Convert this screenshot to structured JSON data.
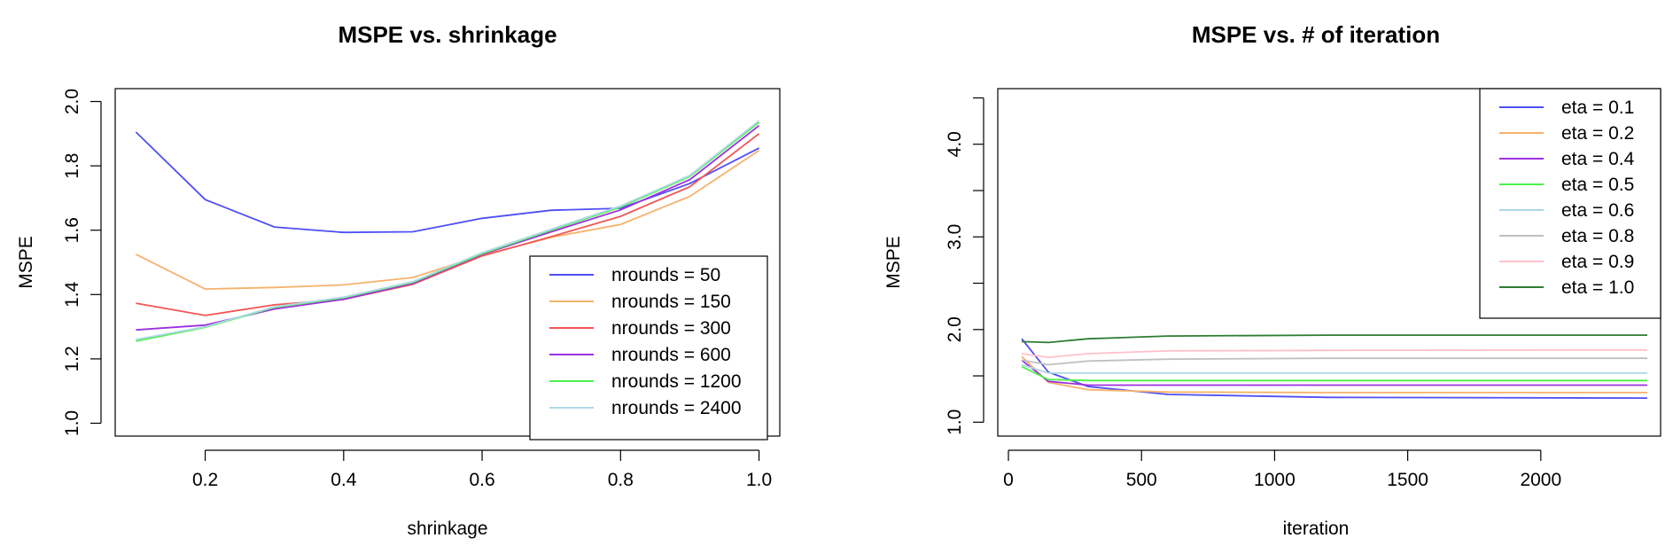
{
  "chart_data": [
    {
      "type": "line",
      "title": "MSPE vs. shrinkage",
      "xlabel": "shrinkage",
      "ylabel": "MSPE",
      "xlim": [
        0.07,
        1.03
      ],
      "ylim": [
        0.96,
        2.04
      ],
      "xticks": [
        0.2,
        0.4,
        0.6,
        0.8,
        1.0
      ],
      "xtick_labels": [
        "0.2",
        "0.4",
        "0.6",
        "0.8",
        "1.0"
      ],
      "yticks": [
        1.0,
        1.2,
        1.4,
        1.6,
        1.8,
        2.0
      ],
      "ytick_labels": [
        "1.0",
        "1.2",
        "1.4",
        "1.6",
        "1.8",
        "2.0"
      ],
      "grid": false,
      "legend_position": "bottom-right",
      "x": [
        0.1,
        0.2,
        0.3,
        0.4,
        0.5,
        0.6,
        0.7,
        0.8,
        0.9,
        1.0
      ],
      "series": [
        {
          "name": "nrounds = 50",
          "color": "#4f4ff5",
          "values": [
            1.905,
            1.695,
            1.61,
            1.593,
            1.595,
            1.637,
            1.662,
            1.668,
            1.745,
            1.855
          ]
        },
        {
          "name": "nrounds = 150",
          "color": "#f6b26b",
          "values": [
            1.525,
            1.417,
            1.422,
            1.43,
            1.453,
            1.522,
            1.578,
            1.618,
            1.705,
            1.848
          ]
        },
        {
          "name": "nrounds = 300",
          "color": "#f25555",
          "values": [
            1.373,
            1.335,
            1.368,
            1.385,
            1.432,
            1.52,
            1.58,
            1.643,
            1.735,
            1.9
          ]
        },
        {
          "name": "nrounds = 600",
          "color": "#9b30e0",
          "values": [
            1.29,
            1.305,
            1.355,
            1.385,
            1.435,
            1.525,
            1.595,
            1.663,
            1.757,
            1.925
          ]
        },
        {
          "name": "nrounds = 1200",
          "color": "#4cf24c",
          "values": [
            1.255,
            1.298,
            1.36,
            1.39,
            1.438,
            1.527,
            1.6,
            1.672,
            1.767,
            1.935
          ]
        },
        {
          "name": "nrounds = 2400",
          "color": "#add8e6",
          "values": [
            1.26,
            1.3,
            1.362,
            1.392,
            1.44,
            1.53,
            1.603,
            1.675,
            1.77,
            1.94
          ]
        }
      ]
    },
    {
      "type": "line",
      "title": "MSPE vs. # of iteration",
      "xlabel": "iteration",
      "ylabel": "MSPE",
      "xlim": [
        -40,
        2450
      ],
      "ylim": [
        0.85,
        4.6
      ],
      "xticks": [
        0,
        500,
        1000,
        1500,
        2000
      ],
      "xtick_labels": [
        "0",
        "500",
        "1000",
        "1500",
        "2000"
      ],
      "yticks": [
        1.0,
        2.0,
        3.0,
        4.0
      ],
      "ytick_labels": [
        "1.0",
        "2.0",
        "3.0",
        "4.0"
      ],
      "yminor_ticks": [
        1.5,
        2.5,
        3.5,
        4.5
      ],
      "grid": false,
      "legend_position": "top-right",
      "x": [
        50,
        150,
        300,
        600,
        1200,
        2400
      ],
      "series": [
        {
          "name": "eta = 0.1",
          "color": "#4f4ff5",
          "values": [
            1.9,
            1.54,
            1.385,
            1.3,
            1.268,
            1.26
          ]
        },
        {
          "name": "eta = 0.2",
          "color": "#f6b26b",
          "values": [
            1.71,
            1.43,
            1.35,
            1.325,
            1.32,
            1.32
          ]
        },
        {
          "name": "eta = 0.4",
          "color": "#9b30e0",
          "values": [
            1.67,
            1.44,
            1.4,
            1.4,
            1.4,
            1.4
          ]
        },
        {
          "name": "eta = 0.5",
          "color": "#4cf24c",
          "values": [
            1.6,
            1.46,
            1.45,
            1.45,
            1.45,
            1.45
          ]
        },
        {
          "name": "eta = 0.6",
          "color": "#add8e6",
          "values": [
            1.62,
            1.53,
            1.53,
            1.53,
            1.53,
            1.53
          ]
        },
        {
          "name": "eta = 0.8",
          "color": "#c0c0c0",
          "values": [
            1.67,
            1.62,
            1.66,
            1.68,
            1.69,
            1.69
          ]
        },
        {
          "name": "eta = 0.9",
          "color": "#ffc0cb",
          "values": [
            1.74,
            1.7,
            1.74,
            1.77,
            1.775,
            1.78
          ]
        },
        {
          "name": "eta = 1.0",
          "color": "#2e7d32",
          "values": [
            1.87,
            1.86,
            1.9,
            1.93,
            1.94,
            1.94
          ]
        }
      ]
    }
  ]
}
